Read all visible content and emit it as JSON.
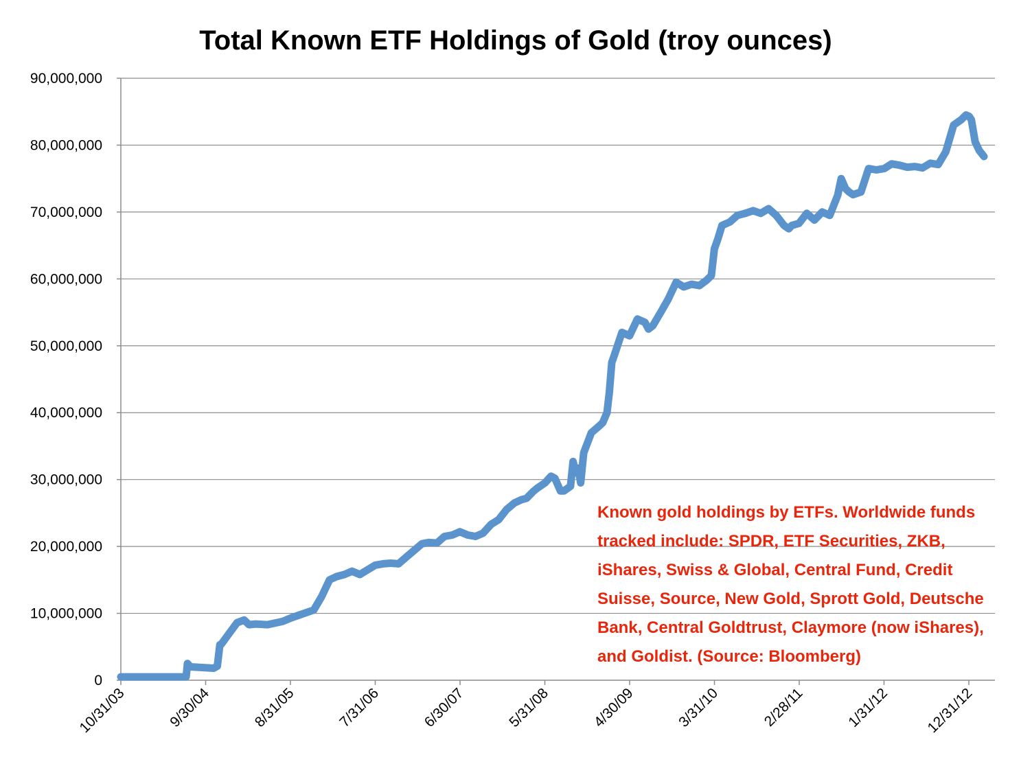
{
  "colors": {
    "series": "#5b93cc",
    "annotation": "#e8260c"
  },
  "chart_data": {
    "type": "line",
    "title": "Total Known ETF Holdings of Gold (troy ounces)",
    "xlabel": "",
    "ylabel": "",
    "ylim": [
      0,
      90000000
    ],
    "y_ticks": [
      {
        "value": 0,
        "label": "0"
      },
      {
        "value": 10000000,
        "label": "10,000,000"
      },
      {
        "value": 20000000,
        "label": "20,000,000"
      },
      {
        "value": 30000000,
        "label": "30,000,000"
      },
      {
        "value": 40000000,
        "label": "40,000,000"
      },
      {
        "value": 50000000,
        "label": "50,000,000"
      },
      {
        "value": 60000000,
        "label": "60,000,000"
      },
      {
        "value": 70000000,
        "label": "70,000,000"
      },
      {
        "value": 80000000,
        "label": "80,000,000"
      },
      {
        "value": 90000000,
        "label": "90,000,000"
      }
    ],
    "x_ticks": [
      "10/31/03",
      "9/30/04",
      "8/31/05",
      "7/31/06",
      "6/30/07",
      "5/31/08",
      "4/30/09",
      "3/31/10",
      "2/28/11",
      "1/31/12",
      "12/31/12"
    ],
    "grid": true,
    "legend": "none",
    "annotation": "Known gold holdings by ETFs. Worldwide funds tracked include: SPDR, ETF Securities, ZKB, iShares, Swiss & Global, Central Fund, Credit Suisse, Source, New Gold, Sprott Gold, Deutsche Bank, Central Goldtrust, Claymore (now iShares), and Goldist. (Source: Bloomberg)",
    "series": [
      {
        "x": [
          "10/31/03",
          "7/15/04",
          "7/20/04",
          "8/1/04",
          "11/1/04",
          "11/15/04",
          "11/25/04",
          "12/1/04",
          "1/1/05",
          "2/1/05",
          "3/1/05",
          "3/20/05",
          "4/15/05",
          "6/1/05",
          "8/1/05",
          "9/1/05",
          "10/1/05",
          "12/1/05",
          "1/1/06",
          "2/1/06",
          "3/1/06",
          "4/1/06",
          "5/1/06",
          "6/1/06",
          "7/1/06",
          "8/1/06",
          "9/1/06",
          "10/1/06",
          "11/1/06",
          "12/1/06",
          "1/1/07",
          "2/1/07",
          "3/1/07",
          "4/1/07",
          "5/1/07",
          "6/1/07",
          "7/1/07",
          "8/1/07",
          "9/1/07",
          "10/1/07",
          "11/1/07",
          "12/1/07",
          "1/1/08",
          "2/1/08",
          "3/1/08",
          "3/20/08",
          "4/15/08",
          "5/1/08",
          "6/1/08",
          "6/25/08",
          "7/10/08",
          "8/1/08",
          "8/15/08",
          "9/10/08",
          "9/20/08",
          "10/1/08",
          "10/10/08",
          "10/20/08",
          "11/1/08",
          "12/1/08",
          "1/1/09",
          "1/15/09",
          "2/1/09",
          "2/10/09",
          "2/20/09",
          "3/1/09",
          "4/1/09",
          "5/1/09",
          "6/1/09",
          "7/1/09",
          "7/15/09",
          "8/1/09",
          "9/1/09",
          "10/1/09",
          "11/1/09",
          "12/1/09",
          "1/1/10",
          "2/1/10",
          "3/1/10",
          "3/20/10",
          "4/1/10",
          "4/15/10",
          "5/1/10",
          "6/1/10",
          "7/1/10",
          "8/1/10",
          "9/1/10",
          "10/1/10",
          "11/1/10",
          "12/1/10",
          "1/1/11",
          "1/20/11",
          "2/1/11",
          "3/1/11",
          "4/1/11",
          "5/1/11",
          "6/1/11",
          "7/1/11",
          "8/1/11",
          "8/15/11",
          "9/1/11",
          "9/15/11",
          "10/1/11",
          "11/1/11",
          "12/1/11",
          "1/1/12",
          "2/1/12",
          "3/1/12",
          "4/1/12",
          "5/1/12",
          "6/1/12",
          "7/1/12",
          "8/1/12",
          "9/1/12",
          "10/1/12",
          "11/1/12",
          "12/1/12",
          "12/20/12",
          "1/1/13",
          "1/10/13",
          "1/25/13",
          "2/10/13",
          "3/1/13"
        ],
        "y": [
          500000,
          500000,
          2500000,
          2000000,
          1800000,
          2100000,
          5300000,
          5400000,
          7000000,
          8600000,
          9000000,
          8300000,
          8400000,
          8300000,
          8800000,
          9300000,
          9700000,
          10500000,
          12500000,
          15000000,
          15500000,
          15800000,
          16300000,
          15800000,
          16500000,
          17200000,
          17400000,
          17500000,
          17400000,
          18400000,
          19400000,
          20400000,
          20600000,
          20500000,
          21500000,
          21700000,
          22200000,
          21700000,
          21500000,
          22000000,
          23300000,
          24000000,
          25500000,
          26500000,
          27000000,
          27200000,
          28200000,
          28700000,
          29500000,
          30500000,
          30200000,
          28300000,
          28300000,
          29000000,
          32700000,
          31000000,
          31700000,
          29500000,
          34000000,
          37000000,
          38000000,
          38500000,
          40000000,
          43000000,
          47500000,
          48500000,
          52000000,
          51500000,
          54000000,
          53500000,
          52500000,
          53000000,
          55000000,
          57000000,
          59500000,
          58800000,
          59200000,
          59000000,
          59800000,
          60500000,
          64500000,
          66000000,
          68000000,
          68500000,
          69500000,
          69800000,
          70200000,
          69800000,
          70500000,
          69500000,
          68000000,
          67500000,
          68000000,
          68300000,
          69800000,
          68800000,
          70000000,
          69500000,
          72500000,
          75000000,
          73500000,
          73000000,
          72600000,
          73000000,
          76500000,
          76300000,
          76500000,
          77200000,
          77000000,
          76700000,
          76800000,
          76600000,
          77300000,
          77100000,
          79000000,
          83000000,
          83800000,
          84500000,
          84300000,
          83800000,
          80500000,
          79200000,
          78300000
        ]
      }
    ]
  }
}
